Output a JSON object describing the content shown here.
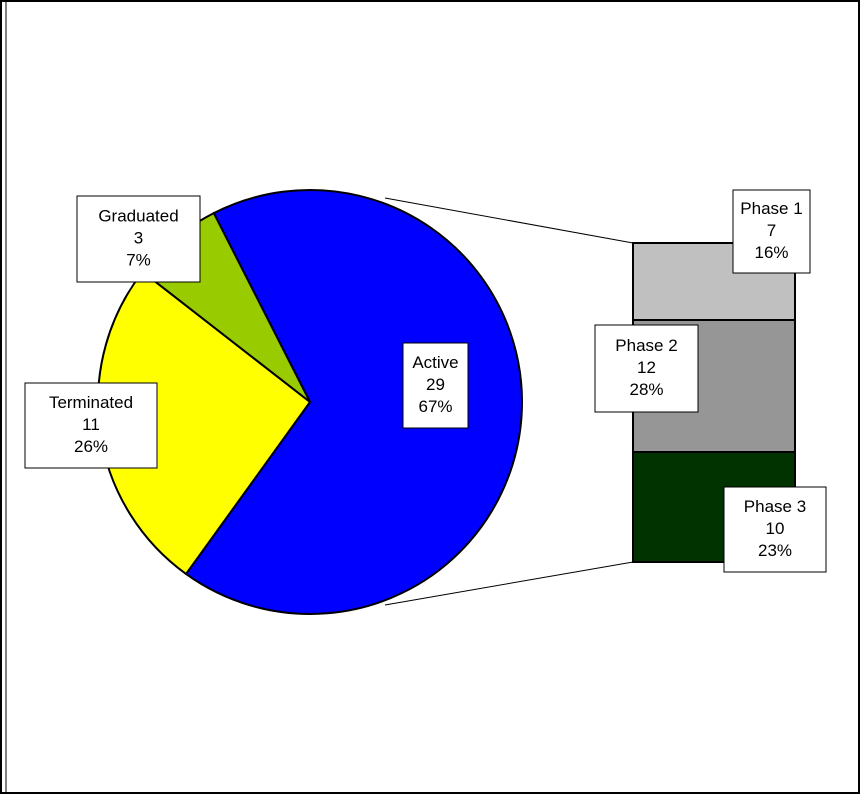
{
  "chart_data": {
    "type": "bar_of_pie",
    "categories": [
      "Active",
      "Terminated",
      "Graduated"
    ],
    "values": [
      29,
      11,
      3
    ],
    "percent_labels": [
      "67%",
      "26%",
      "7%"
    ],
    "colors": [
      "#0000ff",
      "#ffff00",
      "#99cc00"
    ],
    "breakdown": {
      "categories": [
        "Phase 1",
        "Phase 2",
        "Phase 3"
      ],
      "values": [
        7,
        12,
        10
      ],
      "percent_labels": [
        "16%",
        "28%",
        "23%"
      ],
      "colors": [
        "#c0c0c0",
        "#969696",
        "#003300"
      ]
    }
  }
}
